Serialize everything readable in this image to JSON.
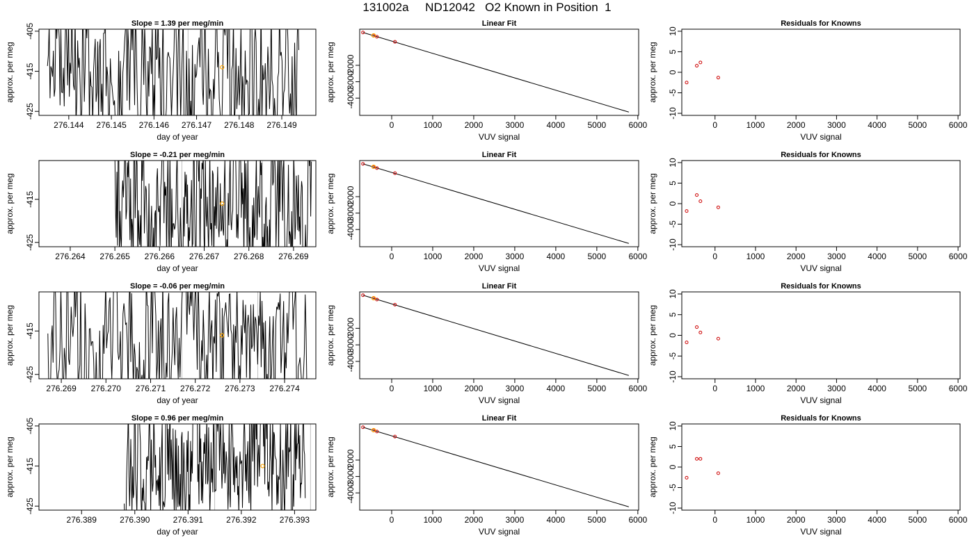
{
  "title": "131002a     ND12042   O2 Known in Position  1",
  "colors": {
    "trace": "#000000",
    "marker_orange": "#FFA500",
    "residual_red": "#CC0000",
    "vline_gray": "#BEBEBE"
  },
  "chart_data": [
    {
      "type": "line",
      "title": "Slope =  1.39  per meg/min",
      "xlabel": "day of year",
      "ylabel": "approx. per meg",
      "xlim": [
        276.1433,
        276.1498
      ],
      "ylim": [
        -426,
        -404.5
      ],
      "xticks": [
        276.144,
        276.145,
        276.146,
        276.147,
        276.148,
        276.149
      ],
      "xtick_labels": [
        "276.144",
        "276.145",
        "276.146",
        "276.147",
        "276.148",
        "276.149"
      ],
      "yticks": [
        -405,
        -415,
        -425
      ],
      "ytick_labels": [
        "-405",
        "-415",
        "-425"
      ],
      "t_start": 276.1435,
      "t_end": 276.1494,
      "level": -414,
      "amplitude": 8,
      "seed": 11,
      "vlines": [
        276.1468,
        276.1485
      ],
      "marker": {
        "x": 276.1476,
        "y": -414
      }
    },
    {
      "type": "line",
      "title": "Slope =  -0.21  per meg/min",
      "xlabel": "day of year",
      "ylabel": "approx. per meg",
      "xlim": [
        276.2633,
        276.2695
      ],
      "ylim": [
        -426,
        -406
      ],
      "xticks": [
        276.264,
        276.265,
        276.266,
        276.267,
        276.268,
        276.269
      ],
      "xtick_labels": [
        "276.264",
        "276.265",
        "276.266",
        "276.267",
        "276.268",
        "276.269"
      ],
      "yticks": [
        -415,
        -425
      ],
      "ytick_labels": [
        "-415",
        "-425"
      ],
      "t_start": 276.265,
      "t_end": 276.2694,
      "level": -417,
      "amplitude": 7,
      "seed": 23,
      "vlines": [
        276.2665,
        276.2683
      ],
      "marker": {
        "x": 276.2674,
        "y": -416
      }
    },
    {
      "type": "line",
      "title": "Slope =  -0.06  per meg/min",
      "xlabel": "day of year",
      "ylabel": "approx. per meg",
      "xlim": [
        276.2685,
        276.2747
      ],
      "ylim": [
        -426,
        -406
      ],
      "xticks": [
        276.269,
        276.27,
        276.271,
        276.272,
        276.273,
        276.274
      ],
      "xtick_labels": [
        "276.269",
        "276.270",
        "276.271",
        "276.272",
        "276.273",
        "276.274"
      ],
      "yticks": [
        -415,
        -425
      ],
      "ytick_labels": [
        "-415",
        "-425"
      ],
      "t_start": 276.2687,
      "t_end": 276.2745,
      "level": -416,
      "amplitude": 7.5,
      "seed": 37,
      "vlines": [
        276.2717,
        276.2734
      ],
      "marker": {
        "x": 276.2726,
        "y": -416
      }
    },
    {
      "type": "line",
      "title": "Slope =  0.96  per meg/min",
      "xlabel": "day of year",
      "ylabel": "approx. per meg",
      "xlim": [
        276.3882,
        276.3934
      ],
      "ylim": [
        -426,
        -404.5
      ],
      "xticks": [
        276.389,
        276.39,
        276.391,
        276.392,
        276.393
      ],
      "xtick_labels": [
        "276.389",
        "276.390",
        "276.391",
        "276.392",
        "276.393"
      ],
      "yticks": [
        -405,
        -415,
        -425
      ],
      "ytick_labels": [
        "-405",
        "-415",
        "-425"
      ],
      "t_start": 276.3898,
      "t_end": 276.3932,
      "level": -414,
      "amplitude": 7,
      "seed": 53,
      "vlines": [
        276.3915,
        276.3933
      ],
      "marker": {
        "x": 276.3924,
        "y": -415
      }
    },
    {
      "type": "scatter",
      "title": "Linear Fit",
      "xlabel": "VUV signal",
      "ylabel": "approx. per meg",
      "xlim": [
        -780,
        6020
      ],
      "ylim": [
        -5050,
        200
      ],
      "xticks": [
        0,
        1000,
        2000,
        3000,
        4000,
        5000,
        6000
      ],
      "xtick_labels": [
        "0",
        "1000",
        "2000",
        "3000",
        "4000",
        "5000",
        "6000"
      ],
      "yticks": [
        -2000,
        -3000,
        -4000
      ],
      "ytick_labels": [
        "-2000",
        "-3000",
        "-4000"
      ],
      "fit_line": [
        [
          -700,
          0
        ],
        [
          5780,
          -4850
        ]
      ],
      "points": [
        [
          -700,
          0
        ],
        [
          -450,
          -190
        ],
        [
          -360,
          -260
        ],
        [
          80,
          -570
        ]
      ],
      "orange_marker": [
        -440,
        -180
      ]
    },
    {
      "type": "scatter",
      "title": "Linear Fit",
      "xlabel": "VUV signal",
      "ylabel": "approx. per meg",
      "xlim": [
        -780,
        6020
      ],
      "ylim": [
        -5050,
        200
      ],
      "xticks": [
        0,
        1000,
        2000,
        3000,
        4000,
        5000,
        6000
      ],
      "xtick_labels": [
        "0",
        "1000",
        "2000",
        "3000",
        "4000",
        "5000",
        "6000"
      ],
      "yticks": [
        -2000,
        -3000,
        -4000
      ],
      "ytick_labels": [
        "-2000",
        "-3000",
        "-4000"
      ],
      "fit_line": [
        [
          -700,
          0
        ],
        [
          5780,
          -4850
        ]
      ],
      "points": [
        [
          -700,
          0
        ],
        [
          -450,
          -190
        ],
        [
          -360,
          -260
        ],
        [
          80,
          -570
        ]
      ],
      "orange_marker": [
        -440,
        -180
      ]
    },
    {
      "type": "scatter",
      "title": "Linear Fit",
      "xlabel": "VUV signal",
      "ylabel": "approx. per meg",
      "xlim": [
        -780,
        6020
      ],
      "ylim": [
        -5050,
        200
      ],
      "xticks": [
        0,
        1000,
        2000,
        3000,
        4000,
        5000,
        6000
      ],
      "xtick_labels": [
        "0",
        "1000",
        "2000",
        "3000",
        "4000",
        "5000",
        "6000"
      ],
      "yticks": [
        -2000,
        -3000,
        -4000
      ],
      "ytick_labels": [
        "-2000",
        "-3000",
        "-4000"
      ],
      "fit_line": [
        [
          -700,
          0
        ],
        [
          5780,
          -4850
        ]
      ],
      "points": [
        [
          -700,
          0
        ],
        [
          -450,
          -190
        ],
        [
          -360,
          -260
        ],
        [
          80,
          -570
        ]
      ],
      "orange_marker": [
        -440,
        -180
      ]
    },
    {
      "type": "scatter",
      "title": "Linear Fit",
      "xlabel": "VUV signal",
      "ylabel": "approx. per meg",
      "xlim": [
        -780,
        6020
      ],
      "ylim": [
        -5050,
        200
      ],
      "xticks": [
        0,
        1000,
        2000,
        3000,
        4000,
        5000,
        6000
      ],
      "xtick_labels": [
        "0",
        "1000",
        "2000",
        "3000",
        "4000",
        "5000",
        "6000"
      ],
      "yticks": [
        -2000,
        -3000,
        -4000
      ],
      "ytick_labels": [
        "-2000",
        "-3000",
        "-4000"
      ],
      "fit_line": [
        [
          -700,
          0
        ],
        [
          5780,
          -4850
        ]
      ],
      "points": [
        [
          -700,
          0
        ],
        [
          -450,
          -190
        ],
        [
          -360,
          -260
        ],
        [
          80,
          -570
        ]
      ],
      "orange_marker": [
        -440,
        -180
      ]
    },
    {
      "type": "scatter",
      "title": "Residuals for Knowns",
      "xlabel": "VUV signal",
      "ylabel": "approx. per meg",
      "xlim": [
        -820,
        6050
      ],
      "ylim": [
        -10.5,
        10.5
      ],
      "xticks": [
        0,
        1000,
        2000,
        3000,
        4000,
        5000,
        6000
      ],
      "xtick_labels": [
        "0",
        "1000",
        "2000",
        "3000",
        "4000",
        "5000",
        "6000"
      ],
      "yticks": [
        -10,
        -5,
        0,
        5,
        10
      ],
      "ytick_labels": [
        "-10",
        "-5",
        "0",
        "5",
        "10"
      ],
      "points": [
        [
          -700,
          -2.5
        ],
        [
          -450,
          1.6
        ],
        [
          -360,
          2.4
        ],
        [
          80,
          -1.3
        ]
      ]
    },
    {
      "type": "scatter",
      "title": "Residuals for Knowns",
      "xlabel": "VUV signal",
      "ylabel": "approx. per meg",
      "xlim": [
        -820,
        6050
      ],
      "ylim": [
        -10.5,
        10.5
      ],
      "xticks": [
        0,
        1000,
        2000,
        3000,
        4000,
        5000,
        6000
      ],
      "xtick_labels": [
        "0",
        "1000",
        "2000",
        "3000",
        "4000",
        "5000",
        "6000"
      ],
      "yticks": [
        -10,
        -5,
        0,
        5,
        10
      ],
      "ytick_labels": [
        "-10",
        "-5",
        "0",
        "5",
        "10"
      ],
      "points": [
        [
          -700,
          -1.8
        ],
        [
          -450,
          2.1
        ],
        [
          -360,
          0.6
        ],
        [
          80,
          -0.9
        ]
      ]
    },
    {
      "type": "scatter",
      "title": "Residuals for Knowns",
      "xlabel": "VUV signal",
      "ylabel": "approx. per meg",
      "xlim": [
        -820,
        6050
      ],
      "ylim": [
        -10.5,
        10.5
      ],
      "xticks": [
        0,
        1000,
        2000,
        3000,
        4000,
        5000,
        6000
      ],
      "xtick_labels": [
        "0",
        "1000",
        "2000",
        "3000",
        "4000",
        "5000",
        "6000"
      ],
      "yticks": [
        -10,
        -5,
        0,
        5,
        10
      ],
      "ytick_labels": [
        "-10",
        "-5",
        "0",
        "5",
        "10"
      ],
      "points": [
        [
          -700,
          -1.7
        ],
        [
          -450,
          2.0
        ],
        [
          -360,
          0.7
        ],
        [
          80,
          -0.8
        ]
      ]
    },
    {
      "type": "scatter",
      "title": "Residuals for Knowns",
      "xlabel": "VUV signal",
      "ylabel": "approx. per meg",
      "xlim": [
        -820,
        6050
      ],
      "ylim": [
        -10.5,
        10.5
      ],
      "xticks": [
        0,
        1000,
        2000,
        3000,
        4000,
        5000,
        6000
      ],
      "xtick_labels": [
        "0",
        "1000",
        "2000",
        "3000",
        "4000",
        "5000",
        "6000"
      ],
      "yticks": [
        -10,
        -5,
        0,
        5,
        10
      ],
      "ytick_labels": [
        "-10",
        "-5",
        "0",
        "5",
        "10"
      ],
      "points": [
        [
          -700,
          -2.6
        ],
        [
          -450,
          2.0
        ],
        [
          -360,
          2.0
        ],
        [
          80,
          -1.5
        ]
      ]
    }
  ]
}
